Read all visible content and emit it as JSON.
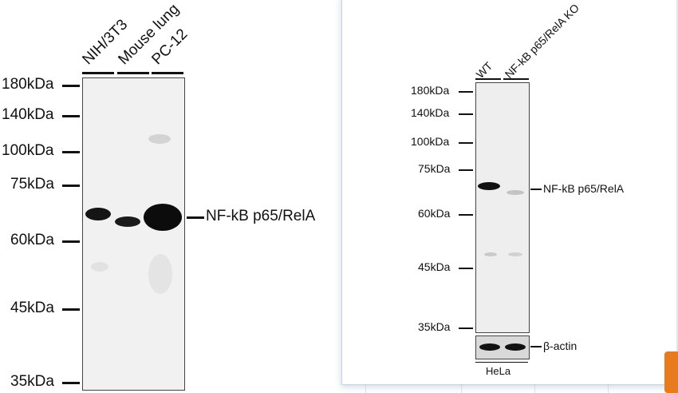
{
  "left_blot": {
    "lanes": [
      "NIH/3T3",
      "Mouse lung",
      "PC-12"
    ],
    "markers": [
      "180kDa",
      "140kDa",
      "100kDa",
      "75kDa",
      "60kDa",
      "45kDa",
      "35kDa"
    ],
    "target_label": "NF-kB p65/RelA"
  },
  "right_blot": {
    "lanes": [
      "WT",
      "NF-kB p65/RelA KO"
    ],
    "markers": [
      "180kDa",
      "140kDa",
      "100kDa",
      "75kDa",
      "60kDa",
      "45kDa",
      "35kDa"
    ],
    "target_label": "NF-kB p65/RelA",
    "loading_label": "β-actin",
    "cell_line": "HeLa"
  },
  "colors": {
    "panel_border": "#c9d3e2",
    "accent": "#e97b1f",
    "band": "#111111"
  }
}
